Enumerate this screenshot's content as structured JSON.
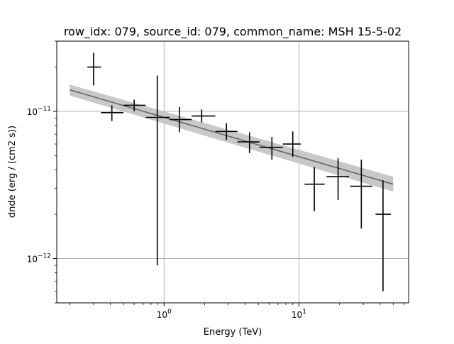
{
  "chart_data": {
    "type": "scatter",
    "title": "row_idx: 079, source_id: 079, common_name: MSH 15-5-02",
    "xlabel": "Energy (TeV)",
    "ylabel": "dnde (erg / (cm2 s))",
    "xscale": "log",
    "yscale": "log",
    "xlim": [
      0.16,
      65
    ],
    "ylim": [
      5e-13,
      3e-11
    ],
    "grid": true,
    "x_ticks": [
      {
        "value": 1,
        "base": "10",
        "exp": "0"
      },
      {
        "value": 10,
        "base": "10",
        "exp": "1"
      }
    ],
    "y_ticks": [
      {
        "value": 1e-12,
        "base": "10",
        "exp": "−12"
      },
      {
        "value": 1e-11,
        "base": "10",
        "exp": "−11"
      }
    ],
    "points": [
      {
        "x": 0.3,
        "y": 2e-11,
        "xlo": 0.27,
        "xhi": 0.34,
        "ylo": 1.5e-11,
        "yhi": 2.5e-11
      },
      {
        "x": 0.41,
        "y": 9.8e-12,
        "xlo": 0.34,
        "xhi": 0.5,
        "ylo": 8.6e-12,
        "yhi": 1.1e-11
      },
      {
        "x": 0.6,
        "y": 1.1e-11,
        "xlo": 0.5,
        "xhi": 0.73,
        "ylo": 1e-11,
        "yhi": 1.2e-11
      },
      {
        "x": 0.89,
        "y": 9.1e-12,
        "xlo": 0.73,
        "xhi": 1.1,
        "ylo": 9e-13,
        "yhi": 1.75e-11
      },
      {
        "x": 1.3,
        "y": 8.8e-12,
        "xlo": 1.1,
        "xhi": 1.6,
        "ylo": 7.2e-12,
        "yhi": 1.07e-11
      },
      {
        "x": 1.9,
        "y": 9.3e-12,
        "xlo": 1.6,
        "xhi": 2.4,
        "ylo": 8.4e-12,
        "yhi": 1.03e-11
      },
      {
        "x": 2.9,
        "y": 7.3e-12,
        "xlo": 2.4,
        "xhi": 3.5,
        "ylo": 6.4e-12,
        "yhi": 8.3e-12
      },
      {
        "x": 4.3,
        "y": 6.2e-12,
        "xlo": 3.5,
        "xhi": 5.1,
        "ylo": 5.2e-12,
        "yhi": 7.2e-12
      },
      {
        "x": 6.3,
        "y": 5.7e-12,
        "xlo": 5.1,
        "xhi": 7.6,
        "ylo": 4.7e-12,
        "yhi": 6.7e-12
      },
      {
        "x": 9.0,
        "y": 6e-12,
        "xlo": 7.6,
        "xhi": 10.3,
        "ylo": 4.9e-12,
        "yhi": 7.3e-12
      },
      {
        "x": 13.0,
        "y": 3.2e-12,
        "xlo": 11.0,
        "xhi": 15.5,
        "ylo": 2.1e-12,
        "yhi": 4.2e-12
      },
      {
        "x": 19.5,
        "y": 3.6e-12,
        "xlo": 16.0,
        "xhi": 23.5,
        "ylo": 2.5e-12,
        "yhi": 4.8e-12
      },
      {
        "x": 29.0,
        "y": 3.1e-12,
        "xlo": 24.0,
        "xhi": 35.0,
        "ylo": 1.6e-12,
        "yhi": 4.7e-12
      },
      {
        "x": 42.0,
        "y": 2e-12,
        "xlo": 37.0,
        "xhi": 48.0,
        "ylo": 6e-13,
        "yhi": 3.4e-12
      }
    ],
    "model": {
      "x": [
        0.2,
        50
      ],
      "y": [
        1.4e-11,
        3.2e-12
      ],
      "band_lo": [
        1.28e-11,
        2.85e-12
      ],
      "band_hi": [
        1.52e-11,
        3.6e-12
      ],
      "line_color": "#666666",
      "band_color": "#c8c8c8"
    },
    "point_color": "#000000"
  }
}
